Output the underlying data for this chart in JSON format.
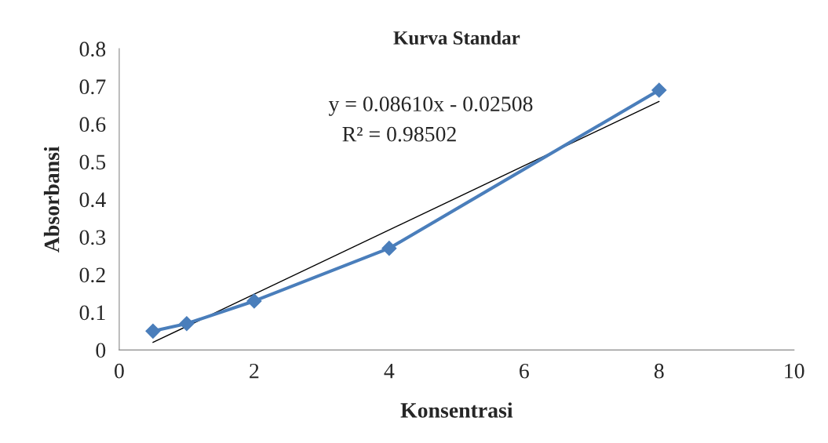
{
  "chart_data": {
    "type": "line",
    "title": "Kurva Standar",
    "xlabel": "Konsentrasi",
    "ylabel": "Absorbansi",
    "series": [
      {
        "color": "#4a7ebb",
        "x": [
          0.5,
          1,
          2,
          4,
          8
        ],
        "values": [
          0.05,
          0.07,
          0.13,
          0.27,
          0.69
        ],
        "marker": "diamond",
        "line_style": "solid"
      },
      {
        "type": "line",
        "color": "#000000",
        "x": [
          0.5,
          8
        ],
        "values": [
          0.02,
          0.66
        ],
        "marker": "none",
        "line_style": "solid"
      }
    ],
    "annotations": [
      "y = 0.08610x - 0.02508",
      "R² = 0.98502"
    ],
    "xlim": [
      0,
      10
    ],
    "xticks": [
      0,
      2,
      4,
      6,
      8,
      10
    ],
    "ylim": [
      0,
      0.8
    ],
    "yticks": [
      0,
      0.1,
      0.2,
      0.3,
      0.4,
      0.5,
      0.6,
      0.7,
      0.8
    ],
    "grid": false,
    "legend": false
  }
}
